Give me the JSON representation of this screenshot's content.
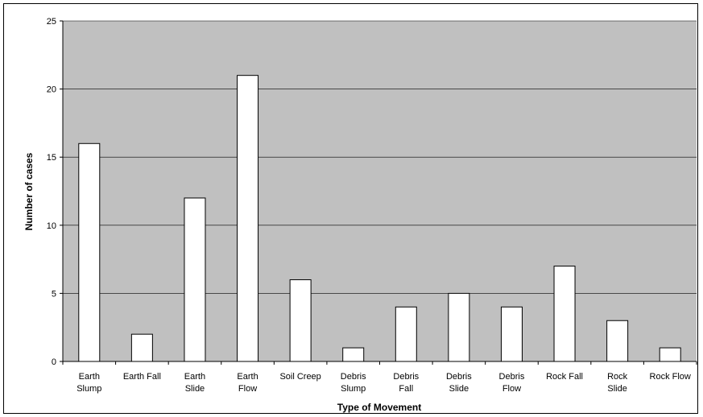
{
  "chart_data": {
    "type": "bar",
    "title": "",
    "xlabel": "Type of Movement",
    "ylabel": "Number of cases",
    "ylim": [
      0,
      25
    ],
    "yticks": [
      0,
      5,
      10,
      15,
      20,
      25
    ],
    "grid": true,
    "categories": [
      [
        "Earth",
        "Slump"
      ],
      [
        "Earth Fall"
      ],
      [
        "Earth",
        "Slide"
      ],
      [
        "Earth",
        "Flow"
      ],
      [
        "Soil Creep"
      ],
      [
        "Debris",
        "Slump"
      ],
      [
        "Debris",
        "Fall"
      ],
      [
        "Debris",
        "Slide"
      ],
      [
        "Debris",
        "Flow"
      ],
      [
        "Rock Fall"
      ],
      [
        "Rock",
        "Slide"
      ],
      [
        "Rock Flow"
      ]
    ],
    "values": [
      16,
      2,
      12,
      21,
      6,
      1,
      4,
      5,
      4,
      7,
      3,
      1
    ],
    "colors": {
      "plot_background": "#c0c0c0",
      "bar_fill": "#ffffff",
      "bar_stroke": "#000000",
      "gridline": "#000000"
    }
  }
}
